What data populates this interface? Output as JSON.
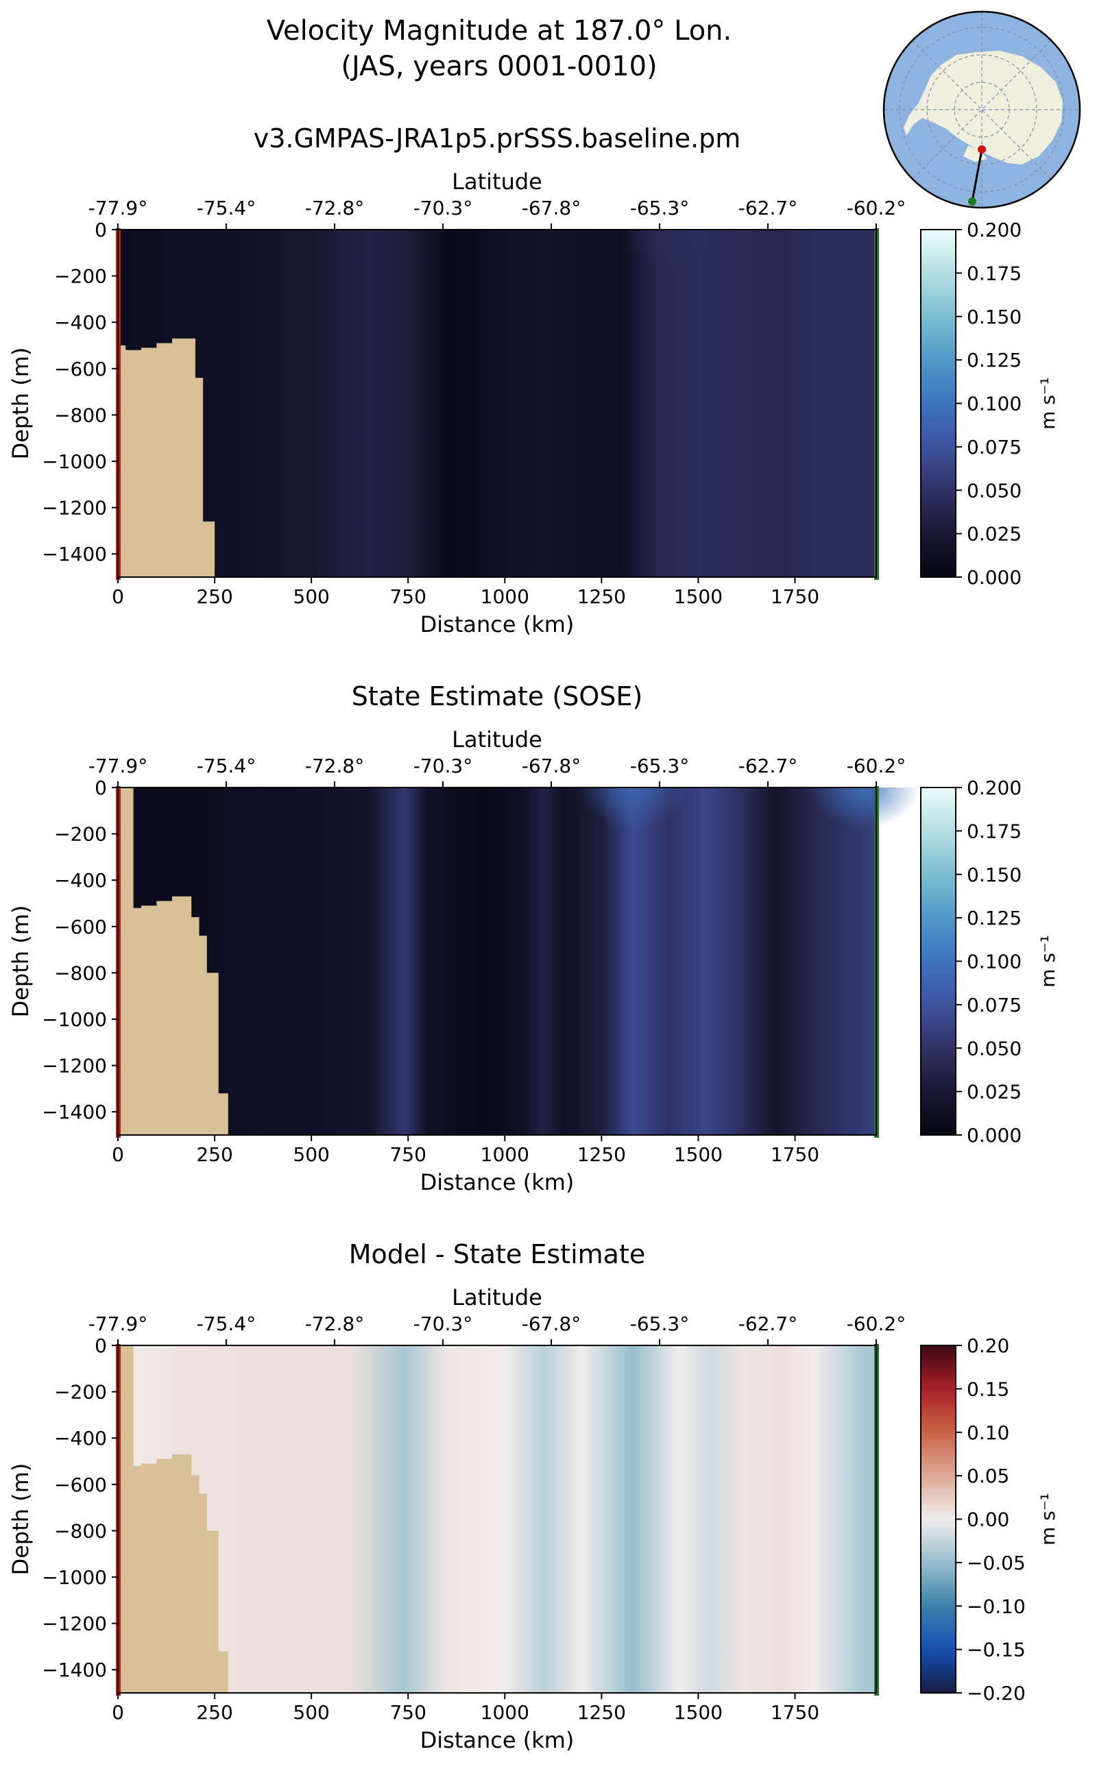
{
  "figure": {
    "title_line1": "Velocity Magnitude at 187.0° Lon.",
    "title_line2": "(JAS, years 0001-0010)"
  },
  "colors": {
    "land": "#d8c096",
    "start_marker": "#cc1111",
    "end_marker": "#1f7a1f",
    "ocean_map": "#8fb3e0",
    "land_map": "#f0eedc"
  },
  "inset_map": {
    "projection": "south-polar",
    "transect_start_color": "red",
    "transect_end_color": "green"
  },
  "chart_data": [
    {
      "type": "heatmap",
      "title": "v3.GMPAS-JRA1p5.prSSS.baseline.pm",
      "xlabel": "Distance (km)",
      "ylabel": "Depth (m)",
      "top_xlabel": "Latitude",
      "xlim": [
        0,
        1960
      ],
      "ylim": [
        -1500,
        0
      ],
      "xticks": [
        0,
        250,
        500,
        750,
        1000,
        1250,
        1500,
        1750
      ],
      "yticks": [
        0,
        -200,
        -400,
        -600,
        -800,
        -1000,
        -1200,
        -1400
      ],
      "ytick_labels": [
        "0",
        "−200",
        "−400",
        "−600",
        "−800",
        "−1000",
        "−1200",
        "−1400"
      ],
      "lat_ticks": [
        "-77.9°",
        "-75.4°",
        "-72.8°",
        "-70.3°",
        "-67.8°",
        "-65.3°",
        "-62.7°",
        "-60.2°"
      ],
      "colorbar": {
        "label": "m s⁻¹",
        "min": 0.0,
        "max": 0.2,
        "ticks": [
          "0.000",
          "0.025",
          "0.050",
          "0.075",
          "0.100",
          "0.125",
          "0.150",
          "0.175",
          "0.200"
        ],
        "colormap": "ice"
      },
      "column_values": [
        {
          "x": 0,
          "v": 0.01
        },
        {
          "x": 150,
          "v": 0.012
        },
        {
          "x": 300,
          "v": 0.015
        },
        {
          "x": 500,
          "v": 0.025
        },
        {
          "x": 650,
          "v": 0.035
        },
        {
          "x": 750,
          "v": 0.03
        },
        {
          "x": 860,
          "v": 0.005
        },
        {
          "x": 1000,
          "v": 0.015
        },
        {
          "x": 1100,
          "v": 0.02
        },
        {
          "x": 1200,
          "v": 0.015
        },
        {
          "x": 1300,
          "v": 0.012
        },
        {
          "x": 1400,
          "v": 0.04
        },
        {
          "x": 1500,
          "v": 0.045
        },
        {
          "x": 1700,
          "v": 0.04
        },
        {
          "x": 1800,
          "v": 0.045
        },
        {
          "x": 1960,
          "v": 0.045
        }
      ],
      "surface_enhancement": [
        {
          "x": 1450,
          "v": 0.045
        }
      ],
      "land_profile": [
        [
          0,
          -500
        ],
        [
          20,
          -500
        ],
        [
          20,
          -520
        ],
        [
          60,
          -520
        ],
        [
          60,
          -510
        ],
        [
          100,
          -510
        ],
        [
          100,
          -490
        ],
        [
          140,
          -490
        ],
        [
          140,
          -470
        ],
        [
          200,
          -470
        ],
        [
          200,
          -640
        ],
        [
          220,
          -640
        ],
        [
          220,
          -1260
        ],
        [
          250,
          -1260
        ],
        [
          250,
          -1500
        ],
        [
          0,
          -1500
        ]
      ]
    },
    {
      "type": "heatmap",
      "title": "State Estimate (SOSE)",
      "xlabel": "Distance (km)",
      "ylabel": "Depth (m)",
      "top_xlabel": "Latitude",
      "xlim": [
        0,
        1960
      ],
      "ylim": [
        -1500,
        0
      ],
      "xticks": [
        0,
        250,
        500,
        750,
        1000,
        1250,
        1500,
        1750
      ],
      "yticks": [
        0,
        -200,
        -400,
        -600,
        -800,
        -1000,
        -1200,
        -1400
      ],
      "ytick_labels": [
        "0",
        "−200",
        "−400",
        "−600",
        "−800",
        "−1000",
        "−1200",
        "−1400"
      ],
      "lat_ticks": [
        "-77.9°",
        "-75.4°",
        "-72.8°",
        "-70.3°",
        "-67.8°",
        "-65.3°",
        "-62.7°",
        "-60.2°"
      ],
      "colorbar": {
        "label": "m s⁻¹",
        "min": 0.0,
        "max": 0.2,
        "ticks": [
          "0.000",
          "0.025",
          "0.050",
          "0.075",
          "0.100",
          "0.125",
          "0.150",
          "0.175",
          "0.200"
        ],
        "colormap": "ice"
      },
      "column_values": [
        {
          "x": 0,
          "v": 0.008
        },
        {
          "x": 150,
          "v": 0.008
        },
        {
          "x": 300,
          "v": 0.012
        },
        {
          "x": 500,
          "v": 0.015
        },
        {
          "x": 650,
          "v": 0.02
        },
        {
          "x": 740,
          "v": 0.055
        },
        {
          "x": 800,
          "v": 0.015
        },
        {
          "x": 950,
          "v": 0.005
        },
        {
          "x": 1050,
          "v": 0.015
        },
        {
          "x": 1100,
          "v": 0.035
        },
        {
          "x": 1150,
          "v": 0.015
        },
        {
          "x": 1250,
          "v": 0.03
        },
        {
          "x": 1330,
          "v": 0.07
        },
        {
          "x": 1420,
          "v": 0.05
        },
        {
          "x": 1520,
          "v": 0.065
        },
        {
          "x": 1600,
          "v": 0.05
        },
        {
          "x": 1700,
          "v": 0.02
        },
        {
          "x": 1800,
          "v": 0.04
        },
        {
          "x": 1960,
          "v": 0.06
        }
      ],
      "surface_enhancement": [
        {
          "x": 1330,
          "v": 0.09
        },
        {
          "x": 1930,
          "v": 0.1
        }
      ],
      "land_profile": [
        [
          0,
          0
        ],
        [
          40,
          0
        ],
        [
          40,
          -520
        ],
        [
          60,
          -520
        ],
        [
          60,
          -510
        ],
        [
          100,
          -510
        ],
        [
          100,
          -490
        ],
        [
          140,
          -490
        ],
        [
          140,
          -470
        ],
        [
          190,
          -470
        ],
        [
          190,
          -560
        ],
        [
          210,
          -560
        ],
        [
          210,
          -640
        ],
        [
          230,
          -640
        ],
        [
          230,
          -800
        ],
        [
          260,
          -800
        ],
        [
          260,
          -1320
        ],
        [
          285,
          -1320
        ],
        [
          285,
          -1500
        ],
        [
          0,
          -1500
        ]
      ]
    },
    {
      "type": "heatmap",
      "title": "Model - State Estimate",
      "xlabel": "Distance (km)",
      "ylabel": "Depth (m)",
      "top_xlabel": "Latitude",
      "xlim": [
        0,
        1960
      ],
      "ylim": [
        -1500,
        0
      ],
      "xticks": [
        0,
        250,
        500,
        750,
        1000,
        1250,
        1500,
        1750
      ],
      "yticks": [
        0,
        -200,
        -400,
        -600,
        -800,
        -1000,
        -1200,
        -1400
      ],
      "ytick_labels": [
        "0",
        "−200",
        "−400",
        "−600",
        "−800",
        "−1000",
        "−1200",
        "−1400"
      ],
      "lat_ticks": [
        "-77.9°",
        "-75.4°",
        "-72.8°",
        "-70.3°",
        "-67.8°",
        "-65.3°",
        "-62.7°",
        "-60.2°"
      ],
      "colorbar": {
        "label": "m s⁻¹",
        "min": -0.2,
        "max": 0.2,
        "ticks": [
          "−0.20",
          "−0.15",
          "−0.10",
          "−0.05",
          "0.00",
          "0.05",
          "0.10",
          "0.15",
          "0.20"
        ],
        "colormap": "balance"
      },
      "column_values": [
        {
          "x": 0,
          "v": 0.0
        },
        {
          "x": 200,
          "v": 0.008
        },
        {
          "x": 400,
          "v": 0.01
        },
        {
          "x": 600,
          "v": 0.01
        },
        {
          "x": 740,
          "v": -0.04
        },
        {
          "x": 850,
          "v": 0.005
        },
        {
          "x": 1000,
          "v": 0.0
        },
        {
          "x": 1100,
          "v": -0.03
        },
        {
          "x": 1200,
          "v": 0.0
        },
        {
          "x": 1330,
          "v": -0.05
        },
        {
          "x": 1450,
          "v": 0.0
        },
        {
          "x": 1530,
          "v": -0.02
        },
        {
          "x": 1620,
          "v": 0.005
        },
        {
          "x": 1720,
          "v": 0.01
        },
        {
          "x": 1800,
          "v": 0.0
        },
        {
          "x": 1930,
          "v": -0.04
        }
      ],
      "surface_enhancement": [],
      "land_profile": [
        [
          0,
          0
        ],
        [
          40,
          0
        ],
        [
          40,
          -520
        ],
        [
          60,
          -520
        ],
        [
          60,
          -510
        ],
        [
          100,
          -510
        ],
        [
          100,
          -490
        ],
        [
          140,
          -490
        ],
        [
          140,
          -470
        ],
        [
          190,
          -470
        ],
        [
          190,
          -560
        ],
        [
          210,
          -560
        ],
        [
          210,
          -640
        ],
        [
          230,
          -640
        ],
        [
          230,
          -800
        ],
        [
          260,
          -800
        ],
        [
          260,
          -1320
        ],
        [
          285,
          -1320
        ],
        [
          285,
          -1500
        ],
        [
          0,
          -1500
        ]
      ]
    }
  ]
}
